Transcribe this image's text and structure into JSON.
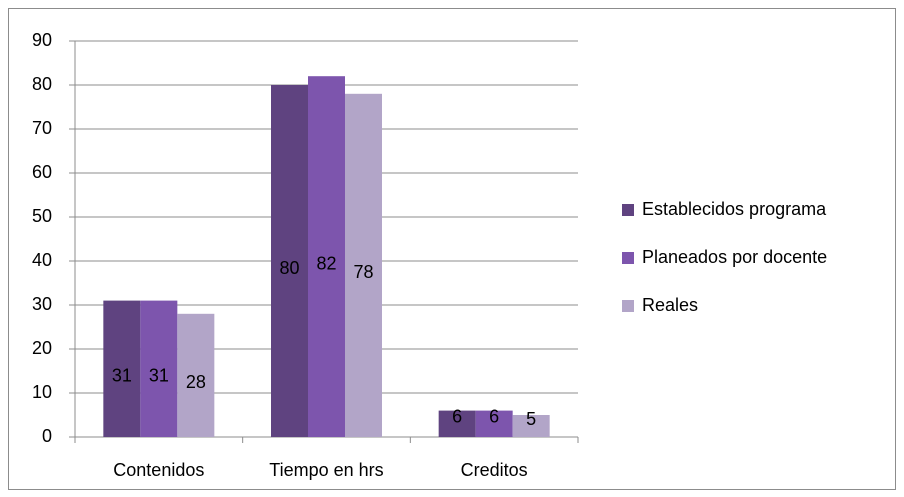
{
  "chart_data": {
    "type": "bar",
    "categories": [
      "Contenidos",
      "Tiempo en hrs",
      "Creditos"
    ],
    "series": [
      {
        "name": "Establecidos programa",
        "color": "#5f4380",
        "values": [
          31,
          80,
          6
        ]
      },
      {
        "name": "Planeados por docente",
        "color": "#7d55ad",
        "values": [
          31,
          82,
          6
        ]
      },
      {
        "name": "Reales",
        "color": "#b2a5c8",
        "values": [
          28,
          78,
          5
        ]
      }
    ],
    "ylim": [
      0,
      90
    ],
    "yticks": [
      0,
      10,
      20,
      30,
      40,
      50,
      60,
      70,
      80,
      90
    ],
    "grid": true,
    "legend": "right",
    "data_labels": true
  }
}
